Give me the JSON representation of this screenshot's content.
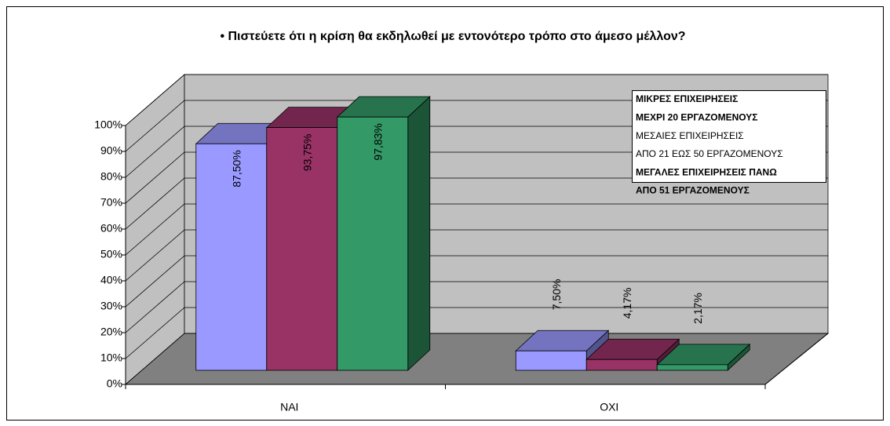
{
  "chart_data": {
    "type": "bar3d",
    "title": "• Πιστεύετε ότι η κρίση θα εκδηλωθεί με εντονότερο τρόπο στο άμεσο μέλλον?",
    "categories": [
      "ΝΑΙ",
      "ΟΧΙ"
    ],
    "series": [
      {
        "name": [
          "ΜΙΚΡΕΣ ΕΠΙΧΕΙΡΗΣΕΙΣ",
          "ΜΕΧΡΙ  20 ΕΡΓΑΖΟΜΕΝΟΥΣ"
        ],
        "color": "#9999ff",
        "text_color": "#3333ff",
        "bold": true,
        "values": [
          87.5,
          7.5
        ],
        "value_labels": [
          "87,50%",
          "7,50%"
        ]
      },
      {
        "name": [
          "ΜΕΣΑΙΕΣ ΕΠΙΧΕΙΡΗΣΕΙΣ",
          "ΑΠΟ 21 ΕΩΣ 50 ΕΡΓΑΖΟΜΕΝΟΥΣ"
        ],
        "color": "#993366",
        "text_color": "#993333",
        "bold": false,
        "values": [
          93.75,
          4.17
        ],
        "value_labels": [
          "93,75%",
          "4,17%"
        ]
      },
      {
        "name": [
          "ΜΕΓΑΛΕΣ ΕΠΙΧΕΙΡΗΣΕΙΣ ΠΑΝΩ",
          "ΑΠΟ 51 ΕΡΓΑΖΟΜΕΝΟΥΣ"
        ],
        "color": "#339966",
        "text_color": "#339966",
        "bold": true,
        "values": [
          97.83,
          2.17
        ],
        "value_labels": [
          "97,83%",
          "2,17%"
        ]
      }
    ],
    "ylim": [
      0,
      100
    ],
    "yticks": [
      {
        "value": 0,
        "label": "0%"
      },
      {
        "value": 10,
        "label": "10%"
      },
      {
        "value": 20,
        "label": "20%"
      },
      {
        "value": 30,
        "label": "30%"
      },
      {
        "value": 40,
        "label": "40%"
      },
      {
        "value": 50,
        "label": "50%"
      },
      {
        "value": 60,
        "label": "60%"
      },
      {
        "value": 70,
        "label": "70%"
      },
      {
        "value": 80,
        "label": "80%"
      },
      {
        "value": 90,
        "label": "90%"
      },
      {
        "value": 100,
        "label": "100%"
      }
    ],
    "grid": true,
    "legend": "top-right"
  }
}
